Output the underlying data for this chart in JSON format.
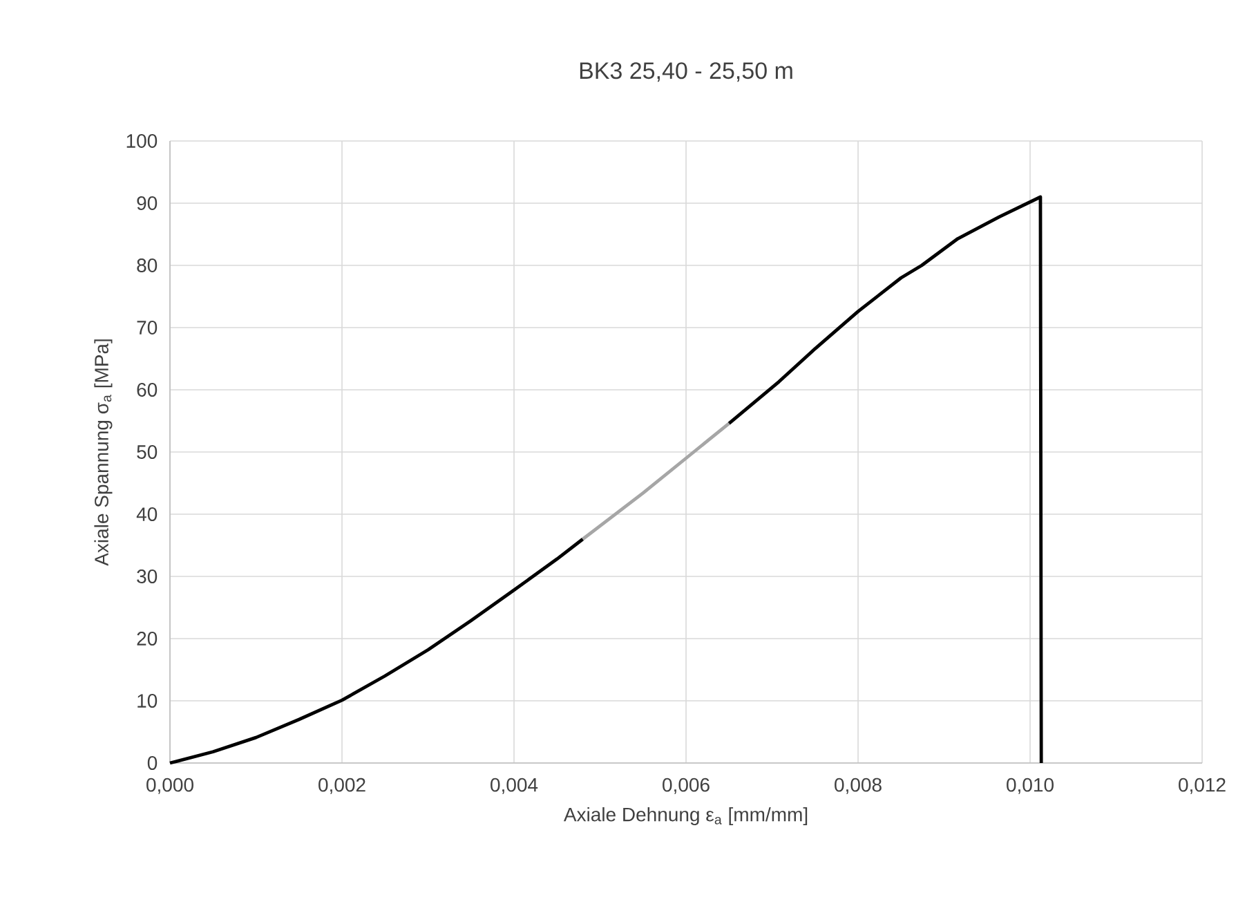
{
  "chart_data": {
    "type": "line",
    "title": "BK3 25,40 - 25,50 m",
    "xlabel": "Axiale Dehnung ε$_{a}$ [mm/mm]",
    "ylabel": "Axiale Spannung σ$_{a}$ [MPa]",
    "series": [
      {
        "color": "#000000",
        "x": [
          0,
          0.0005,
          0.001,
          0.0015,
          0.002,
          0.0025,
          0.003,
          0.0035,
          0.004,
          0.0045,
          0.0048
        ],
        "values": [
          0,
          1.8,
          4.1,
          7.0,
          10.1,
          14.0,
          18.2,
          22.9,
          27.8,
          32.8,
          36.0
        ]
      },
      {
        "color": "#a6a6a6",
        "x": [
          0.0048,
          0.0055,
          0.006,
          0.0065
        ],
        "values": [
          36.0,
          43.4,
          49.0,
          54.6
        ]
      },
      {
        "color": "#000000",
        "x": [
          0.0065,
          0.00708,
          0.0075,
          0.008,
          0.0085,
          0.00874,
          0.00916,
          0.00964,
          0.01012,
          0.01013
        ],
        "values": [
          54.6,
          61.3,
          66.6,
          72.6,
          78.0,
          80.0,
          84.3,
          87.8,
          91.0,
          0
        ]
      }
    ],
    "xlim": [
      0,
      0.012
    ],
    "ylim": [
      0,
      100
    ],
    "xticks": [
      {
        "value": 0,
        "label": "0,000"
      },
      {
        "value": 0.002,
        "label": "0,002"
      },
      {
        "value": 0.004,
        "label": "0,004"
      },
      {
        "value": 0.006,
        "label": "0,006"
      },
      {
        "value": 0.008,
        "label": "0,008"
      },
      {
        "value": 0.01,
        "label": "0,010"
      },
      {
        "value": 0.012,
        "label": "0,012"
      }
    ],
    "yticks": [
      0,
      10,
      20,
      30,
      40,
      50,
      60,
      70,
      80,
      90,
      100
    ],
    "grid": true,
    "marker": "none",
    "line_style": "solid"
  }
}
